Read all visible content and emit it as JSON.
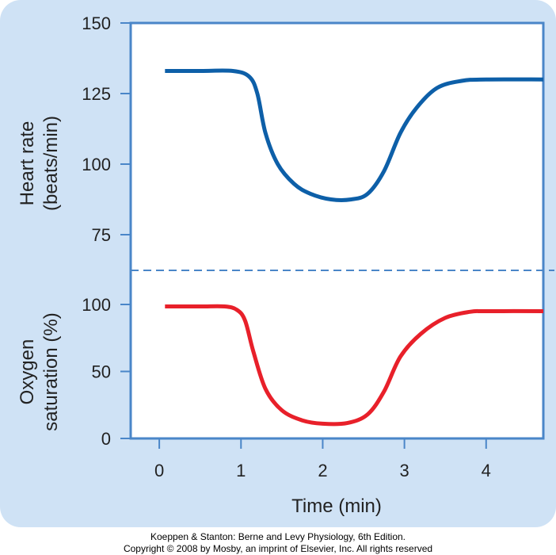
{
  "chart_data": [
    {
      "type": "line",
      "ylabel_lines": [
        "Heart rate",
        "(beats/min)"
      ],
      "ylim": [
        75,
        150
      ],
      "yticks": [
        75,
        100,
        125,
        150
      ],
      "xlim": [
        -0.35,
        4.7
      ],
      "grid": false,
      "series": [
        {
          "color": "#0d5fa8",
          "x": [
            0.07,
            0.5,
            0.9,
            1.1,
            1.2,
            1.3,
            1.45,
            1.65,
            1.85,
            2.1,
            2.35,
            2.55,
            2.75,
            2.95,
            3.15,
            3.4,
            3.7,
            4.0,
            4.7
          ],
          "y": [
            133,
            133,
            133,
            131,
            125,
            111,
            100,
            93,
            89.5,
            87.5,
            87.5,
            89.5,
            97.5,
            111,
            120,
            127,
            129.5,
            130,
            130
          ]
        }
      ]
    },
    {
      "type": "line",
      "ylabel_lines": [
        "Oxygen",
        "saturation (%)"
      ],
      "ylim": [
        0,
        100
      ],
      "yticks": [
        0,
        50,
        100
      ],
      "xlim": [
        -0.35,
        4.7
      ],
      "xticks": [
        0,
        1,
        2,
        3,
        4
      ],
      "xlabel": "Time (min)",
      "grid": false,
      "series": [
        {
          "color": "#e8202a",
          "x": [
            0.07,
            0.5,
            0.8,
            0.95,
            1.05,
            1.15,
            1.3,
            1.5,
            1.75,
            2.0,
            2.3,
            2.55,
            2.75,
            2.95,
            3.2,
            3.5,
            3.8,
            4.0,
            4.7
          ],
          "y": [
            98.5,
            98.5,
            98.5,
            96,
            88,
            65,
            37,
            21,
            13.5,
            11,
            11.5,
            18,
            35,
            61,
            78,
            90,
            94.5,
            95,
            95
          ]
        }
      ]
    }
  ],
  "credit": {
    "line1": "Koeppen & Stanton: Berne and Levy Physiology, 6th Edition.",
    "line2": "Copyright © 2008 by Mosby, an imprint of Elsevier, Inc. All rights reserved"
  },
  "colors": {
    "panel_background": "#cfe2f5",
    "plot_background": "#ffffff",
    "axis_frame": "#4a86c8",
    "divider_dash": "#4a86c8"
  }
}
